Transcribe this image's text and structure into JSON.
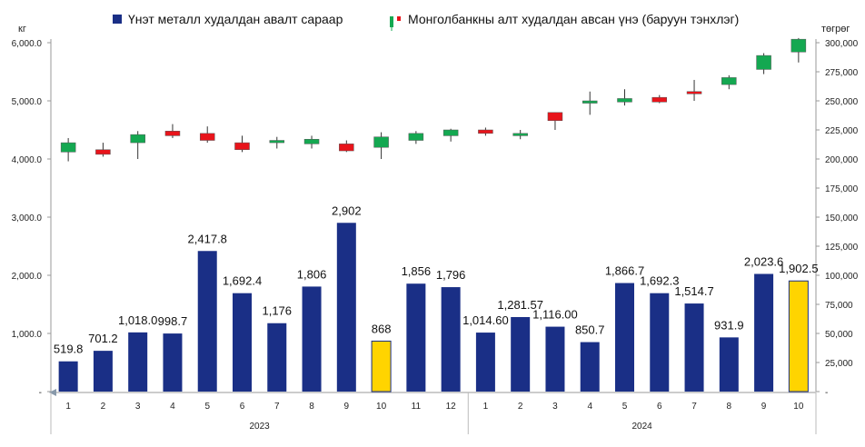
{
  "chart_data": {
    "type": "bar",
    "left_unit": "кг",
    "right_unit": "төгрөг",
    "left_axis": {
      "ylim": [
        0,
        6000
      ],
      "ticks": [
        {
          "value": 0,
          "label": "-"
        },
        {
          "value": 1000,
          "label": "1,000.0"
        },
        {
          "value": 2000,
          "label": "2,000.0"
        },
        {
          "value": 3000,
          "label": "3,000.0"
        },
        {
          "value": 4000,
          "label": "4,000.0"
        },
        {
          "value": 5000,
          "label": "5,000.0"
        },
        {
          "value": 6000,
          "label": "6,000.0"
        }
      ]
    },
    "right_axis": {
      "ylim": [
        0,
        300000
      ],
      "ticks": [
        {
          "value": 0,
          "label": "-"
        },
        {
          "value": 25000,
          "label": "25,000"
        },
        {
          "value": 50000,
          "label": "50,000"
        },
        {
          "value": 75000,
          "label": "75,000"
        },
        {
          "value": 100000,
          "label": "100,000"
        },
        {
          "value": 125000,
          "label": "125,000"
        },
        {
          "value": 150000,
          "label": "150,000"
        },
        {
          "value": 175000,
          "label": "175,000"
        },
        {
          "value": 200000,
          "label": "200,000"
        },
        {
          "value": 225000,
          "label": "225,000"
        },
        {
          "value": 250000,
          "label": "250,000"
        },
        {
          "value": 275000,
          "label": "275,000"
        },
        {
          "value": 300000,
          "label": "300,000"
        }
      ]
    },
    "groups": [
      {
        "label": "2023",
        "months": [
          "1",
          "2",
          "3",
          "4",
          "5",
          "6",
          "7",
          "8",
          "9",
          "10",
          "11",
          "12"
        ]
      },
      {
        "label": "2024",
        "months": [
          "1",
          "2",
          "3",
          "4",
          "5",
          "6",
          "7",
          "8",
          "9",
          "10"
        ]
      }
    ],
    "series": [
      {
        "name": "Үнэт металл худалдан авалт сараар",
        "type": "bar",
        "color": "#1a2f86",
        "highlight_color": "#ffd400",
        "values": [
          519.8,
          701.2,
          1018.0,
          998.7,
          2417.8,
          1692.4,
          1176,
          1806,
          2902,
          868,
          1856,
          1796,
          1014.6,
          1281.57,
          1116.0,
          850.7,
          1866.7,
          1692.3,
          1514.7,
          931.9,
          2023.6,
          1902.5
        ],
        "labels": [
          "519.8",
          "701.2",
          "1,018.0",
          "998.7",
          "2,417.8",
          "1,692.4",
          "1,176",
          "1,806",
          "2,902",
          "868",
          "1,856",
          "1,796",
          "1,014.60",
          "1,281.57",
          "1,116.00",
          "850.7",
          "1,866.7",
          "1,692.3",
          "1,514.7",
          "931.9",
          "2,023.6",
          "1,902.5"
        ],
        "highlight": [
          false,
          false,
          false,
          false,
          false,
          false,
          false,
          false,
          false,
          true,
          false,
          false,
          false,
          false,
          false,
          false,
          false,
          false,
          false,
          false,
          false,
          true
        ]
      },
      {
        "name": "Монголбанкны алт худалдан авсан үнэ (баруун тэнхлэг)",
        "type": "candlestick",
        "up_color": "#14a851",
        "down_color": "#e8141b",
        "ohlc": [
          {
            "open": 206000,
            "high": 218000,
            "low": 198000,
            "close": 214000
          },
          {
            "open": 208000,
            "high": 214000,
            "low": 202000,
            "close": 204000
          },
          {
            "open": 214000,
            "high": 224000,
            "low": 200000,
            "close": 221000
          },
          {
            "open": 224000,
            "high": 230000,
            "low": 218000,
            "close": 220000
          },
          {
            "open": 222000,
            "high": 228000,
            "low": 214000,
            "close": 216000
          },
          {
            "open": 214000,
            "high": 220000,
            "low": 206000,
            "close": 208000
          },
          {
            "open": 214000,
            "high": 219000,
            "low": 209000,
            "close": 216000
          },
          {
            "open": 213000,
            "high": 220000,
            "low": 209000,
            "close": 217000
          },
          {
            "open": 213000,
            "high": 216000,
            "low": 206000,
            "close": 207000
          },
          {
            "open": 210000,
            "high": 223000,
            "low": 200000,
            "close": 219000
          },
          {
            "open": 216000,
            "high": 224000,
            "low": 213000,
            "close": 222000
          },
          {
            "open": 220000,
            "high": 226000,
            "low": 215000,
            "close": 225000
          },
          {
            "open": 225000,
            "high": 227000,
            "low": 220000,
            "close": 222000
          },
          {
            "open": 220000,
            "high": 225000,
            "low": 217000,
            "close": 222000
          },
          {
            "open": 240000,
            "high": 240000,
            "low": 225000,
            "close": 233000
          },
          {
            "open": 248000,
            "high": 258000,
            "low": 238000,
            "close": 250000
          },
          {
            "open": 249000,
            "high": 260000,
            "low": 246000,
            "close": 252000
          },
          {
            "open": 253000,
            "high": 255000,
            "low": 248000,
            "close": 249000
          },
          {
            "open": 258000,
            "high": 268000,
            "low": 250000,
            "close": 256000
          },
          {
            "open": 264000,
            "high": 272000,
            "low": 260000,
            "close": 270000
          },
          {
            "open": 277000,
            "high": 291000,
            "low": 273000,
            "close": 289000
          },
          {
            "open": 292000,
            "high": 304000,
            "low": 283000,
            "close": 303000
          }
        ]
      }
    ]
  }
}
